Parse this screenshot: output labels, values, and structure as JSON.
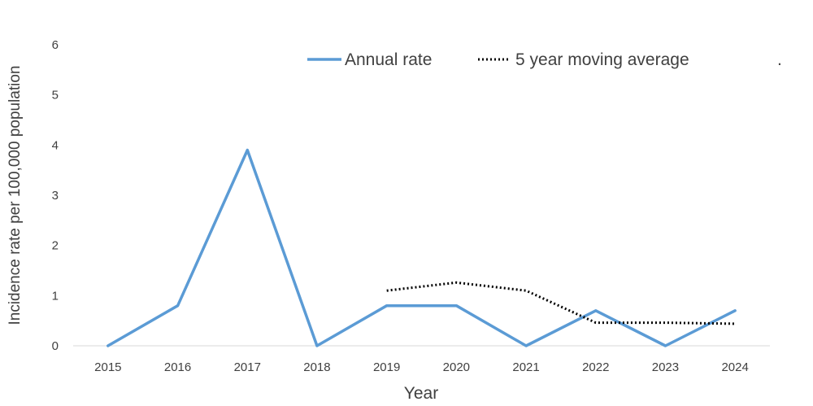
{
  "chart_data": {
    "type": "line",
    "x": [
      "2015",
      "2016",
      "2017",
      "2018",
      "2019",
      "2020",
      "2021",
      "2022",
      "2023",
      "2024"
    ],
    "xlabel": "Year",
    "ylabel": "Incidence rate per 100,000 population",
    "ylim": [
      0,
      6
    ],
    "yticks": [
      "0",
      "1",
      "2",
      "3",
      "4",
      "5",
      "6"
    ],
    "grid": false,
    "legend_position": "top",
    "legend_trailing_mark": ".",
    "series": [
      {
        "name": "Annual rate",
        "style": "solid",
        "color": "#5B9BD5",
        "values": [
          0,
          0.8,
          3.9,
          0,
          0.8,
          0.8,
          0,
          0.7,
          0,
          0.7
        ]
      },
      {
        "name": "5 year moving average",
        "style": "dotted",
        "color": "#000000",
        "values": [
          null,
          null,
          null,
          null,
          1.1,
          1.26,
          1.1,
          0.46,
          0.46,
          0.44
        ]
      }
    ]
  }
}
